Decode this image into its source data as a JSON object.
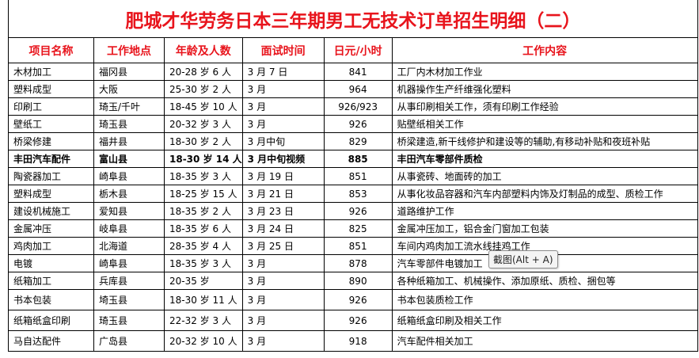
{
  "title": "肥城才华劳务日本三年期男工无技术订单招生明细（二）",
  "headers": [
    "项目名称",
    "工作地点",
    "年龄及人数",
    "面试时间",
    "日元/小时",
    "工作内容"
  ],
  "rows": [
    [
      "木材加工",
      "福冈县",
      "20-28 岁 6 人",
      "3 月 7 日",
      "841",
      "工厂内木材加工作业"
    ],
    [
      "塑料成型",
      "大阪",
      "25-30 岁 2 人",
      "3 月",
      "964",
      "机器操作生产纤维强化塑料"
    ],
    [
      "印刷工",
      "琦玉/千叶",
      "18-45 岁 10 人",
      "3 月",
      "926/923",
      "从事印刷相关工作，须有印刷工作经验"
    ],
    [
      "壁纸工",
      "琦玉县",
      "20-32 岁 3 人",
      "3 月",
      "926",
      "贴壁纸相关工作"
    ],
    [
      "桥梁修建",
      "福井县",
      "18-30 岁 2 人",
      "3 月中旬",
      "829",
      "桥梁建造,新干线修护和建设等的辅助,有移动补贴和夜班补贴"
    ],
    [
      "丰田汽车配件",
      "富山县",
      "18-30 岁 14 人",
      "3 月中旬视频",
      "885",
      "丰田汽车零部件质检"
    ],
    [
      "陶瓷器加工",
      "崎阜县",
      "18-35 岁 3 人",
      "3 月 19 日",
      "851",
      "从事瓷砖、地面砖的加工"
    ],
    [
      "塑料成型",
      "栃木县",
      "18-25 岁 15 人",
      "3 月 21 日",
      "853",
      "从事化妆品容器和汽车内部塑料内饰及灯制品的成型、质检工作"
    ],
    [
      "建设机械施工",
      "爱知县",
      "18-35 岁 2 人",
      "3 月 23 日",
      "926",
      "道路维护工作"
    ],
    [
      "金属冲压",
      "岐阜县",
      "18-35 岁 6 人",
      "3 月 24 日",
      "825",
      "金属冲压加工，铝合金门窗加工包装"
    ],
    [
      "鸡肉加工",
      "北海道",
      "28-35 岁 4 人",
      "3 月 25 日",
      "851",
      "车间内鸡肉加工流水线挂鸡工作"
    ],
    [
      "电镀",
      "崎阜县",
      "18-35 岁 3 人",
      "3 月",
      "878",
      "汽车零部件电镀加工"
    ],
    [
      "纸箱加工",
      "兵库县",
      "20-35 岁",
      "3 月",
      "890",
      "各种纸箱加工、机械操作、添加原纸、质检、捆包等"
    ],
    [
      "书本包装",
      "埼玉县",
      "18-30 岁 11 人",
      "3 月",
      "926",
      "书本包装质检工作"
    ],
    [
      "纸箱纸盒印刷",
      "琦玉县",
      "22-32 岁 3 人",
      "3 月",
      "926",
      "纸箱纸盒印刷及相关工作"
    ],
    [
      "马自达配件",
      "广岛县",
      "20-32 岁 10 人",
      "3 月",
      "918",
      "汽车配件相关加工"
    ]
  ],
  "bold_row": 5,
  "tooltip": "截图(Alt + A)",
  "colors": {
    "title": "#e8141c",
    "header": "#e8141c"
  }
}
